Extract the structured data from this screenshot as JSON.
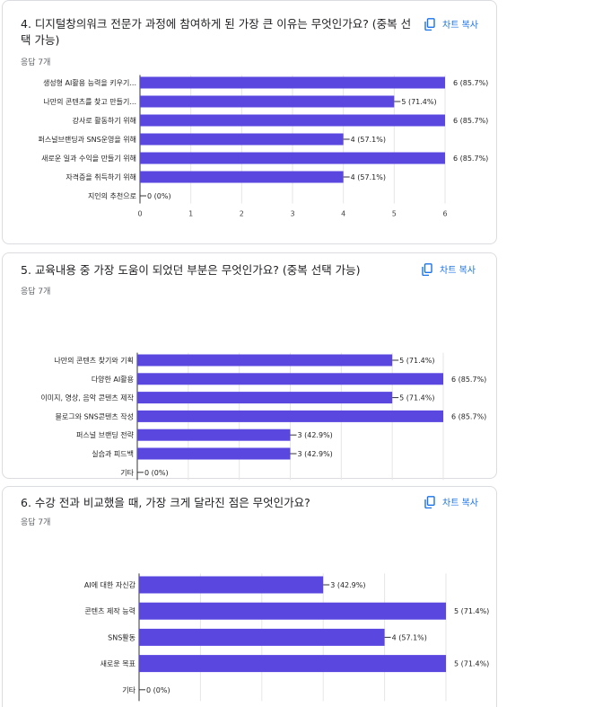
{
  "copy_label": "차트 복사",
  "questions": [
    {
      "title_line1": "4. 디지털창의워크 전문가 과정에 참여하게 된 가장 큰 이유는 무엇인가요? (중복 선",
      "title_line2": "택 가능)",
      "count": "응답 7개"
    },
    {
      "title_line1": "5. 교육내용 중 가장 도움이 되었던 부분은 무엇인가요? (중복 선택 가능)",
      "title_line2": "",
      "count": "응답 7개"
    },
    {
      "title_line1": "6. 수강 전과 비교했을 때, 가장 크게 달라진 점은 무엇인가요?",
      "title_line2": "",
      "count": "응답 7개"
    }
  ],
  "chart_data": [
    {
      "type": "bar",
      "orientation": "horizontal",
      "bar_color": "#5a47e0",
      "categories": [
        "생성형 AI활용 능력을 키우기...",
        "나만의 콘텐츠를 찾고 만들기...",
        "강사로 활동하기 위해",
        "퍼스널브랜딩과 SNS운영을 위해",
        "새로운 일과 수익을 만들기 위해",
        "자격증을 취득하기 위해",
        "지인의 추천으로"
      ],
      "values": [
        6,
        5,
        6,
        4,
        6,
        4,
        0
      ],
      "value_labels": [
        "6 (85.7%)",
        "5 (71.4%)",
        "6 (85.7%)",
        "4 (57.1%)",
        "6 (85.7%)",
        "4 (57.1%)",
        "0 (0%)"
      ],
      "xlim": [
        0,
        6
      ],
      "xticks": [
        "0",
        "1",
        "2",
        "3",
        "4",
        "5",
        "6"
      ],
      "grid": true
    },
    {
      "type": "bar",
      "orientation": "horizontal",
      "bar_color": "#5a47e0",
      "categories": [
        "나만의 콘텐츠 찾기와 기획",
        "다양한 AI활용",
        "이미지, 영상, 음악 콘텐츠 제작",
        "블로그와 SNS콘텐츠 작성",
        "퍼스널 브랜딩 전략",
        "실습과 피드백",
        "기타"
      ],
      "values": [
        5,
        6,
        5,
        6,
        3,
        3,
        0
      ],
      "value_labels": [
        "5 (71.4%)",
        "6 (85.7%)",
        "5 (71.4%)",
        "6 (85.7%)",
        "3 (42.9%)",
        "3 (42.9%)",
        "0 (0%)"
      ],
      "xlim": [
        0,
        6
      ],
      "xticks": [
        "0",
        "1",
        "2",
        "3",
        "4",
        "5",
        "6"
      ],
      "grid": true
    },
    {
      "type": "bar",
      "orientation": "horizontal",
      "bar_color": "#5a47e0",
      "categories": [
        "AI에 대한 자신감",
        "콘텐츠 제작 능력",
        "SNS활동",
        "새로운 목표",
        "기타"
      ],
      "values": [
        3,
        5,
        4,
        5,
        0
      ],
      "value_labels": [
        "3 (42.9%)",
        "5 (71.4%)",
        "4 (57.1%)",
        "5 (71.4%)",
        "0 (0%)"
      ],
      "xlim": [
        0,
        5
      ],
      "xticks": [
        "0",
        "1",
        "2",
        "3",
        "4",
        "5"
      ],
      "grid": true
    }
  ]
}
